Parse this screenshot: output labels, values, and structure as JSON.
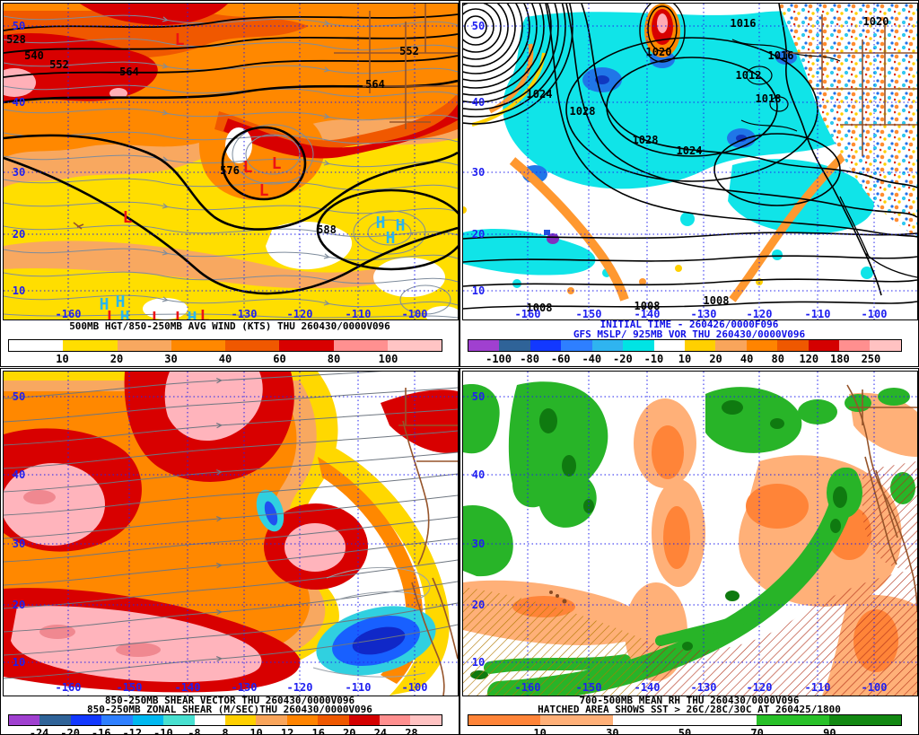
{
  "sym": {
    "L": "L",
    "H": "H"
  },
  "panels": {
    "p1": {
      "title": "500MB HGT/850-250MB AVG WIND (KTS) THU 260430/0000V096",
      "lat": [
        "50",
        "40",
        "30",
        "20",
        "10"
      ],
      "lon": [
        "-160",
        "-130",
        "-120",
        "-110",
        "-100"
      ],
      "contours": [
        "528",
        "540",
        "552",
        "564",
        "552",
        "564",
        "576",
        "588"
      ],
      "colorbar": {
        "colors": [
          "#FFFFFF",
          "#FFDE00",
          "#F8A860",
          "#FF8800",
          "#F05800",
          "#D80000",
          "#FF9090",
          "#FFC4C4"
        ],
        "ticks": [
          "10",
          "20",
          "30",
          "40",
          "60",
          "80",
          "100"
        ]
      }
    },
    "p2": {
      "title_line1": "INITIAL TIME - 260426/0000F096",
      "title_line2": "GFS MSLP/ 925MB VOR THU 260430/0000V096",
      "lat": [
        "50",
        "40",
        "30",
        "20",
        "10"
      ],
      "lon": [
        "-160",
        "-150",
        "-140",
        "-130",
        "-120",
        "-110",
        "-100"
      ],
      "isobars": [
        "1020",
        "1028",
        "1024",
        "1028",
        "1024",
        "1016",
        "1020",
        "1016",
        "1012",
        "1018",
        "1008",
        "1008",
        "1008"
      ],
      "colorbar": {
        "colors": [
          "#A040D0",
          "#2F6398",
          "#1238FF",
          "#2E7FFF",
          "#2FB4F0",
          "#00E4E4",
          "#FFFFFF",
          "#FFD000",
          "#F9A55B",
          "#FF8400",
          "#EF5800",
          "#D40000",
          "#FF8F8F",
          "#FFC2C2"
        ],
        "ticks": [
          "-100",
          "-80",
          "-60",
          "-40",
          "-20",
          "-10",
          "10",
          "20",
          "40",
          "80",
          "120",
          "180",
          "250"
        ]
      }
    },
    "p3": {
      "title_line1": "850-250MB SHEAR VECTOR THU 260430/0000V096",
      "title_line2": "850-250MB ZONAL SHEAR (M/SEC)THU 260430/0000V096",
      "lat": [
        "50",
        "40",
        "30",
        "20",
        "10"
      ],
      "lon": [
        "-160",
        "-150",
        "-140",
        "-130",
        "-120",
        "-110",
        "-100"
      ],
      "colorbar": {
        "colors": [
          "#A040D0",
          "#2F6398",
          "#1238FF",
          "#2E7FFF",
          "#00B8F0",
          "#48E0D0",
          "#FFFFFF",
          "#FFD000",
          "#F9A55B",
          "#FF8400",
          "#EF5800",
          "#D40000",
          "#FF8F8F",
          "#FFC2C2"
        ],
        "ticks": [
          "-24",
          "-20",
          "-16",
          "-12",
          "-10",
          "-8",
          "8",
          "10",
          "12",
          "16",
          "20",
          "24",
          "28"
        ]
      }
    },
    "p4": {
      "title_line1": "700-500MB MEAN RH THU 260430/0000V096",
      "title_line2": "HATCHED AREA SHOWS SST > 26C/28C/30C AT 260425/1800",
      "lat": [
        "50",
        "40",
        "30",
        "20",
        "10"
      ],
      "lon": [
        "-160",
        "-150",
        "-140",
        "-130",
        "-120",
        "-110",
        "-100"
      ],
      "colorbar": {
        "colors": [
          "#FF8438",
          "#FFB078",
          "#FFFFFF",
          "#FFFFFF",
          "#28C028",
          "#128812"
        ],
        "ticks": [
          "10",
          "30",
          "50",
          "70",
          "90"
        ]
      }
    }
  }
}
